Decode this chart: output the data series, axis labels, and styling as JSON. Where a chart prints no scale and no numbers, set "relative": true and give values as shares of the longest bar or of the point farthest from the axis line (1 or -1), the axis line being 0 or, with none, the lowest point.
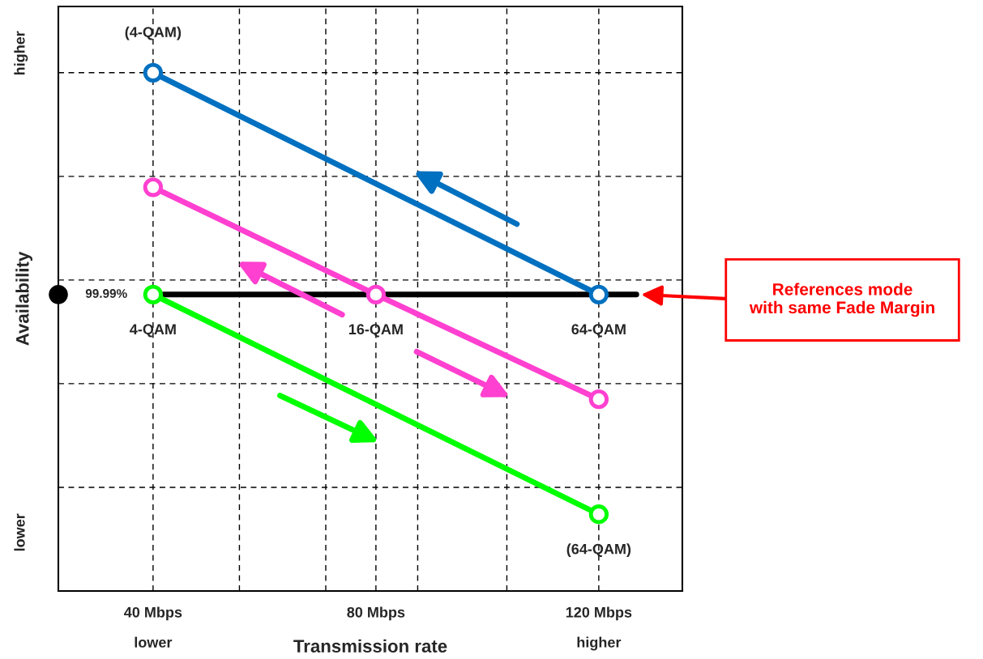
{
  "chart_data": {
    "type": "line",
    "relative": true,
    "xlabel": "Transmission rate",
    "ylabel": "Availability",
    "xlim": [
      23,
      135
    ],
    "xticks": [
      {
        "value": 40,
        "label": "40 Mbps"
      },
      {
        "value": 55.5,
        "label": null
      },
      {
        "value": 71,
        "label": null
      },
      {
        "value": 80,
        "label": "80 Mbps"
      },
      {
        "value": 87.5,
        "label": null
      },
      {
        "value": 103.5,
        "label": null
      },
      {
        "value": 120,
        "label": "120 Mbps"
      }
    ],
    "series": [
      {
        "color": "#0070c0",
        "x": [
          40,
          120
        ],
        "values": [
          1,
          0.572
        ]
      },
      {
        "color": "#ff40d0",
        "x": [
          40,
          80,
          120
        ],
        "values": [
          0.779,
          0.572,
          0.37
        ]
      },
      {
        "color": "#00ff00",
        "x": [
          40,
          120
        ],
        "values": [
          0.572,
          0.148
        ]
      }
    ],
    "ref_lines": [
      {
        "axis": "y",
        "value": 0.572,
        "color": "#000000"
      }
    ],
    "marker": "circle",
    "grid": true,
    "annotations": [
      {
        "text": "99.99%",
        "x": 23,
        "y": 0.572
      },
      {
        "text": "(4-QAM)",
        "x": 40,
        "y": 1
      },
      {
        "text": "4-QAM",
        "x": 40,
        "y": 0.572
      },
      {
        "text": "16-QAM",
        "x": 80,
        "y": 0.572
      },
      {
        "text": "64-QAM",
        "x": 120,
        "y": 0.572
      },
      {
        "text": "(64-QAM)",
        "x": 120,
        "y": 0.148
      },
      "lower",
      "higher",
      "higher",
      "lower",
      "References mode\nwith same Fade Margin"
    ]
  }
}
